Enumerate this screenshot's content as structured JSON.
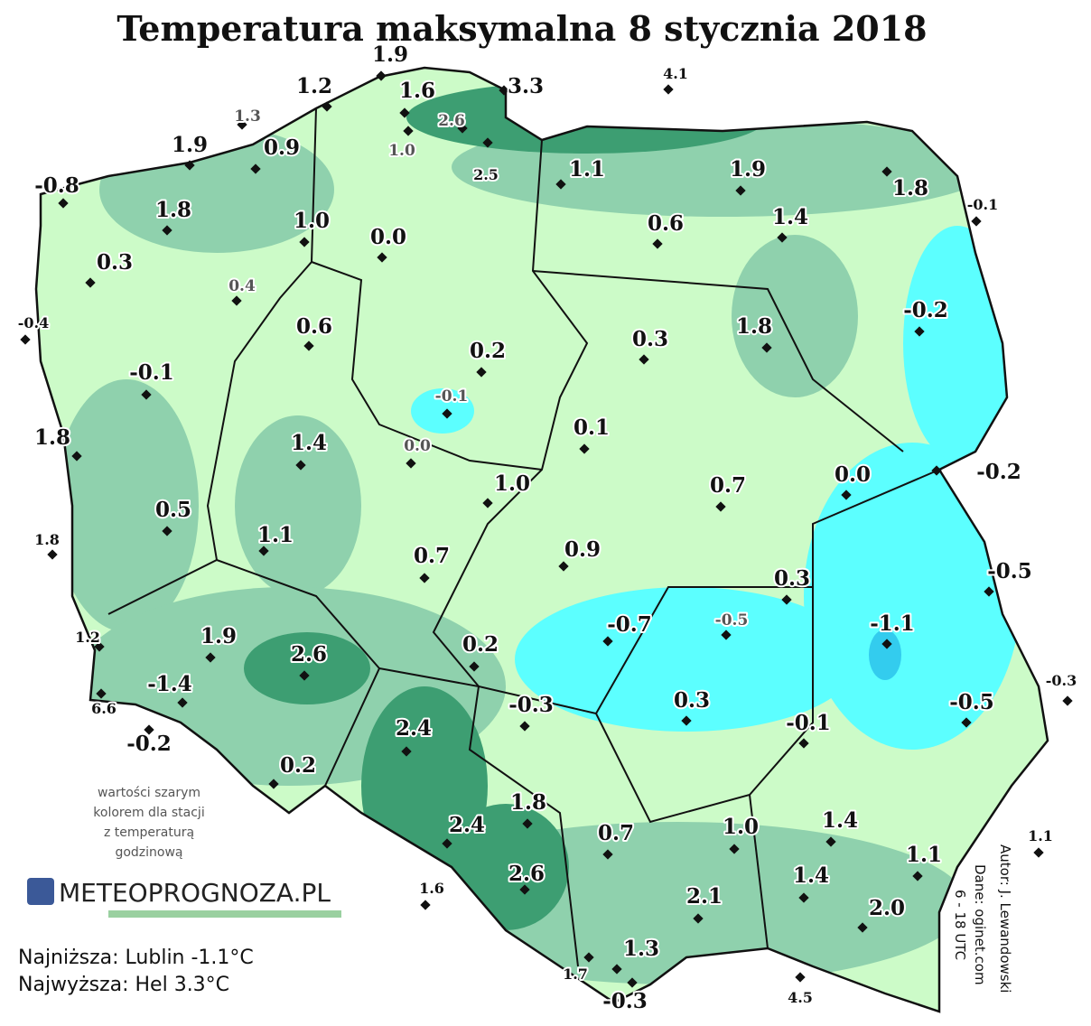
{
  "title": "Temperatura maksymalna 8 stycznia 2018",
  "stations": [
    "1.9",
    "1.2",
    "1.3",
    "1.6",
    "2.6",
    "1.0",
    "3.3",
    "2.5",
    "4.1",
    "1.9",
    "0.9",
    "-0.8",
    "1.8",
    "1.0",
    "0.0",
    "0.3",
    "0.4",
    "-0.4",
    "0.6",
    "-0.1",
    "-0.1",
    "0.2",
    "0.0",
    "1.8",
    "1.4",
    "0.5",
    "1.8",
    "1.1",
    "1.0",
    "0.7",
    "0.9",
    "1.1",
    "1.9",
    "1.8",
    "-0.1",
    "0.6",
    "1.4",
    "-0.2",
    "0.3",
    "1.8",
    "0.1",
    "0.7",
    "0.0",
    "-0.2",
    "-0.5",
    "0.3",
    "-0.7",
    "-0.5",
    "-1.1",
    "1.2",
    "1.9",
    "2.6",
    "0.2",
    "-1.4",
    "-0.3",
    "0.3",
    "-0.1",
    "-0.5",
    "-0.3",
    "6.6",
    "-0.2",
    "0.2",
    "2.4",
    "1.8",
    "2.4",
    "0.7",
    "1.0",
    "1.4",
    "1.1",
    "1.1",
    "1.6",
    "2.6",
    "1.4",
    "2.1",
    "2.0",
    "1.3",
    "1.7",
    "-0.3",
    "4.5"
  ],
  "note": [
    "wartości szarym",
    "kolorem dla stacji",
    "z temperaturą",
    "godzinową"
  ],
  "logo": "METEOPROGNOZA.PL",
  "summary": [
    "Najniższa: Lublin -1.1°C",
    "Najwyższa: Hel 3.3°C"
  ],
  "credits": [
    "Autor: J. Lewandowski",
    "Dane: oginet.com",
    "6 - 18 UTC"
  ]
}
